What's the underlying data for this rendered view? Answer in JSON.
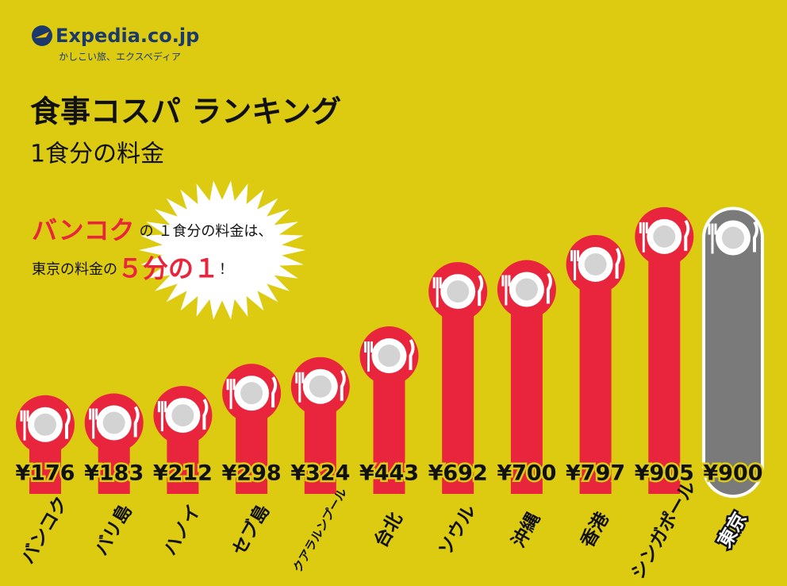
{
  "brand": {
    "name": "Expedia.co.jp",
    "tagline": "かしこい旅、エクスペディア"
  },
  "chart_data": {
    "type": "lollipop-bar",
    "title": "食事コスパ ランキング",
    "subtitle": "1食分の料金",
    "annotation": {
      "line1": {
        "highlight": "バンコク",
        "text": "の １食分の料金は、"
      },
      "line2": {
        "text": "東京の料金の",
        "highlight": "５分の１",
        "end": "！"
      }
    },
    "categories": [
      "バンコク",
      "バリ島",
      "ハノイ",
      "セブ島",
      "クアラルンプール",
      "台北",
      "ソウル",
      "沖縄",
      "香港",
      "シンガポール",
      "東京"
    ],
    "values": [
      176,
      183,
      212,
      298,
      324,
      443,
      692,
      700,
      797,
      905,
      900
    ],
    "value_labels": [
      "¥176",
      "¥183",
      "¥212",
      "¥298",
      "¥324",
      "¥443",
      "¥692",
      "¥700",
      "¥797",
      "¥905",
      "¥900"
    ],
    "colors": [
      "#e8253c",
      "#e8253c",
      "#e8253c",
      "#e8253c",
      "#e8253c",
      "#e8253c",
      "#e8253c",
      "#e8253c",
      "#e8253c",
      "#e8253c",
      "#7a7a7a"
    ]
  }
}
